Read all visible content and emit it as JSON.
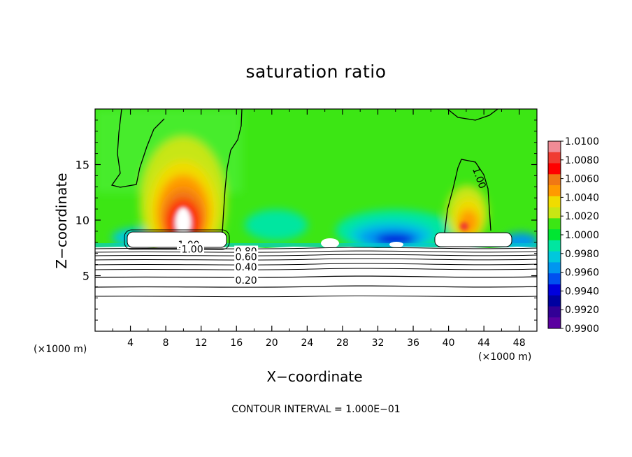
{
  "chart_data": {
    "type": "heatmap",
    "title": "saturation ratio",
    "xlabel": "X−coordinate",
    "ylabel": "Z−coordinate",
    "x_unit_label": "(×1000 m)",
    "xlim": [
      0,
      50
    ],
    "ylim": [
      0,
      20
    ],
    "x_ticks": [
      4,
      8,
      12,
      16,
      20,
      24,
      28,
      32,
      36,
      40,
      44,
      48
    ],
    "y_ticks": [
      5,
      10,
      15
    ],
    "colorbar": {
      "ticks": [
        "1.0100",
        "1.0080",
        "1.0060",
        "1.0040",
        "1.0020",
        "1.0000",
        "0.9980",
        "0.9960",
        "0.9940",
        "0.9920",
        "0.9900"
      ],
      "colors": [
        "#f08c96",
        "#f03c32",
        "#ff0000",
        "#f07814",
        "#ff9a00",
        "#f0dc00",
        "#c8e614",
        "#3ce614",
        "#00e632",
        "#00e6a0",
        "#00c8dc",
        "#0096f0",
        "#0050f0",
        "#0000dc",
        "#0000a0",
        "#320096",
        "#5a00a0"
      ]
    },
    "contour_labels": [
      {
        "text": "1.00",
        "x": 10.6,
        "y": 7.8
      },
      {
        "text": "1.00",
        "x": 11.0,
        "y": 7.4
      },
      {
        "text": "0.80",
        "x": 17.1,
        "y": 7.2
      },
      {
        "text": "0.60",
        "x": 17.1,
        "y": 6.7
      },
      {
        "text": "0.40",
        "x": 17.1,
        "y": 5.8
      },
      {
        "text": "0.20",
        "x": 17.1,
        "y": 4.6
      },
      {
        "text": "1.00",
        "x": 43.5,
        "y": 13.8
      }
    ],
    "footnote": "CONTOUR INTERVAL = 1.000E−01"
  }
}
